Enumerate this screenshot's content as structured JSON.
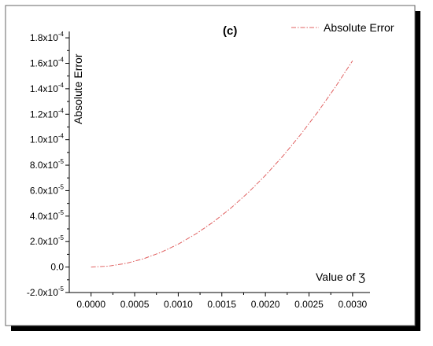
{
  "chart_data": {
    "type": "line",
    "panel_label": "(c)",
    "xlabel": "Value of Ʒ",
    "ylabel": "Absolute Error",
    "xlim": [
      -0.00025,
      0.0032
    ],
    "ylim": [
      -2e-05,
      0.000185
    ],
    "x_ticks": [
      {
        "value": 0.0,
        "label": "0.0000"
      },
      {
        "value": 0.0005,
        "label": "0.0005"
      },
      {
        "value": 0.001,
        "label": "0.0010"
      },
      {
        "value": 0.0015,
        "label": "0.0015"
      },
      {
        "value": 0.002,
        "label": "0.0020"
      },
      {
        "value": 0.0025,
        "label": "0.0025"
      },
      {
        "value": 0.003,
        "label": "0.0030"
      }
    ],
    "y_ticks": [
      {
        "value": -2e-05,
        "mant": "-2.0x10",
        "exp": "-5"
      },
      {
        "value": 0.0,
        "mant": "0.0",
        "exp": ""
      },
      {
        "value": 2e-05,
        "mant": "2.0x10",
        "exp": "-5"
      },
      {
        "value": 4e-05,
        "mant": "4.0x10",
        "exp": "-5"
      },
      {
        "value": 6e-05,
        "mant": "6.0x10",
        "exp": "-5"
      },
      {
        "value": 8e-05,
        "mant": "8.0x10",
        "exp": "-5"
      },
      {
        "value": 0.0001,
        "mant": "1.0x10",
        "exp": "-4"
      },
      {
        "value": 0.00012,
        "mant": "1.2x10",
        "exp": "-4"
      },
      {
        "value": 0.00014,
        "mant": "1.4x10",
        "exp": "-4"
      },
      {
        "value": 0.00016,
        "mant": "1.6x10",
        "exp": "-4"
      },
      {
        "value": 0.00018,
        "mant": "1.8x10",
        "exp": "-4"
      }
    ],
    "legend_position": "top-right",
    "grid": false,
    "series": [
      {
        "name": "Absolute Error",
        "color": "#e06060",
        "line_style": "dash-dot",
        "x": [
          0.0,
          0.0002,
          0.0004,
          0.0006,
          0.0008,
          0.001,
          0.0012,
          0.0014,
          0.0016,
          0.0018,
          0.002,
          0.0022,
          0.0024,
          0.0026,
          0.0028,
          0.003
        ],
        "y": [
          0.0,
          7.2e-07,
          2.88e-06,
          6.48e-06,
          1.152e-05,
          1.8e-05,
          2.592e-05,
          3.528e-05,
          4.608e-05,
          5.832e-05,
          7.2e-05,
          8.712e-05,
          0.00010368,
          0.00012168,
          0.00014112,
          0.000162
        ]
      }
    ]
  }
}
